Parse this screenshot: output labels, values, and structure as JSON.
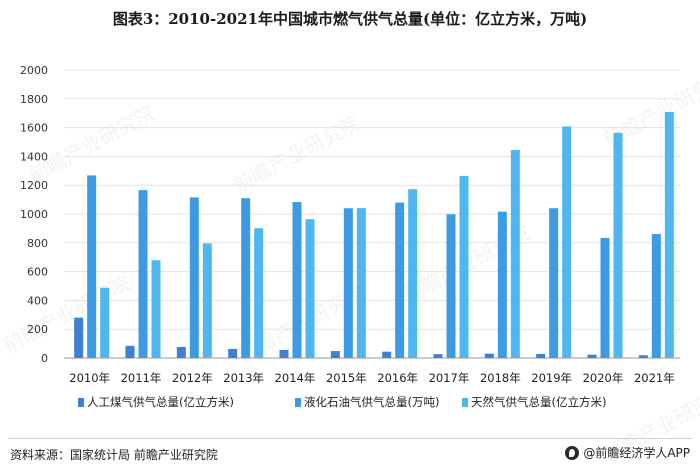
{
  "title": "图表3：2010-2021年中国城市燃气供气总量(单位：亿立方米，万吨)",
  "footer": {
    "source": "资料来源：国家统计局 前瞻产业研究院",
    "brand": "@前瞻经济学人APP"
  },
  "watermark": "前瞻产业研究院",
  "colors": {
    "series1": "#3f7fd6",
    "series2": "#3d9be6",
    "series3": "#4fb6f0",
    "grid": "#e3e3e3",
    "axis": "#9a9a9a"
  },
  "chart_data": {
    "type": "bar",
    "title": "图表3：2010-2021年中国城市燃气供气总量(单位：亿立方米，万吨)",
    "categories": [
      "2010年",
      "2011年",
      "2012年",
      "2013年",
      "2014年",
      "2015年",
      "2016年",
      "2017年",
      "2018年",
      "2019年",
      "2020年",
      "2021年"
    ],
    "yticks": [
      "0",
      "200",
      "400",
      "600",
      "800",
      "1000",
      "1200",
      "1400",
      "1600",
      "1800",
      "2000"
    ],
    "ylim": [
      0,
      2000
    ],
    "grid": true,
    "legend_position": "bottom",
    "series": [
      {
        "name": "人工煤气供气总量(亿立方米)",
        "color": "#3f7fd6",
        "values": [
          280,
          85,
          77,
          63,
          56,
          48,
          44,
          27,
          30,
          28,
          23,
          19
        ]
      },
      {
        "name": "液化石油气供气总量(万吨)",
        "color": "#3d9be6",
        "values": [
          1268,
          1166,
          1115,
          1110,
          1083,
          1040,
          1079,
          998,
          1016,
          1040,
          834,
          861
        ]
      },
      {
        "name": "天然气供气总量(亿立方米)",
        "color": "#4fb6f0",
        "values": [
          488,
          679,
          796,
          901,
          964,
          1041,
          1172,
          1264,
          1444,
          1608,
          1564,
          1708
        ]
      }
    ]
  }
}
